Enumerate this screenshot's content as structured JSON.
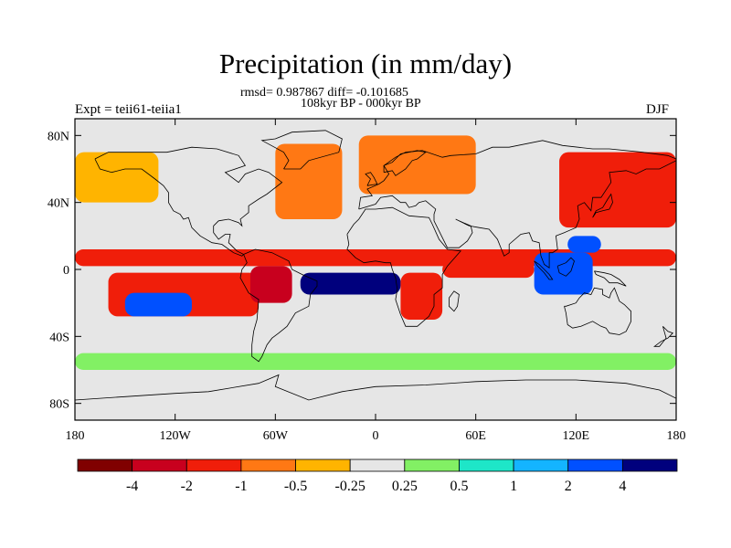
{
  "title": "Precipitation (in mm/day)",
  "stats_line": "rmsd= 0.987867 diff= -0.101685",
  "period_line": "108kyr BP - 000kyr BP",
  "left_label": "Expt = teii61-teiia1",
  "right_label": "DJF",
  "chart_data": {
    "type": "heatmap",
    "title": "Precipitation (in mm/day)",
    "subtitle": "108kyr BP - 000kyr BP",
    "xlabel": "",
    "ylabel": "",
    "projection": "cylindrical equidistant",
    "xlim": [
      -180,
      180
    ],
    "ylim": [
      -90,
      90
    ],
    "x_ticks": [
      {
        "value": -180,
        "label": "180"
      },
      {
        "value": -120,
        "label": "120W"
      },
      {
        "value": -60,
        "label": "60W"
      },
      {
        "value": 0,
        "label": "0"
      },
      {
        "value": 60,
        "label": "60E"
      },
      {
        "value": 120,
        "label": "120E"
      },
      {
        "value": 180,
        "label": "180"
      }
    ],
    "y_ticks": [
      {
        "value": 80,
        "label": "80N"
      },
      {
        "value": 40,
        "label": "40N"
      },
      {
        "value": 0,
        "label": "0"
      },
      {
        "value": -40,
        "label": "40S"
      },
      {
        "value": -80,
        "label": "80S"
      }
    ],
    "colorbar": {
      "levels": [
        "-4",
        "-2",
        "-1",
        "-0.5",
        "-0.25",
        "0.25",
        "0.5",
        "1",
        "2",
        "4"
      ],
      "colors": [
        "#800000",
        "#c8001e",
        "#f01e0a",
        "#ff7814",
        "#ffb400",
        "#e6e6e6",
        "#82f064",
        "#1ee6c8",
        "#14b4ff",
        "#0050ff",
        "#00007d"
      ]
    },
    "regions": [
      {
        "lon": [
          -180,
          180
        ],
        "lat": [
          2,
          12
        ],
        "value": -1.5
      },
      {
        "lon": [
          -160,
          -70
        ],
        "lat": [
          -28,
          -2
        ],
        "value": -1.5
      },
      {
        "lon": [
          -150,
          -110
        ],
        "lat": [
          -28,
          -14
        ],
        "value": 2.5
      },
      {
        "lon": [
          -75,
          -50
        ],
        "lat": [
          -20,
          2
        ],
        "value": -3
      },
      {
        "lon": [
          -45,
          15
        ],
        "lat": [
          -15,
          -2
        ],
        "value": 4.5
      },
      {
        "lon": [
          15,
          40
        ],
        "lat": [
          -30,
          -2
        ],
        "value": -1.5
      },
      {
        "lon": [
          40,
          95
        ],
        "lat": [
          -5,
          5
        ],
        "value": -1.5
      },
      {
        "lon": [
          95,
          130
        ],
        "lat": [
          -15,
          10
        ],
        "value": 2.5
      },
      {
        "lon": [
          115,
          135
        ],
        "lat": [
          10,
          20
        ],
        "value": 2.5
      },
      {
        "lon": [
          -60,
          -20
        ],
        "lat": [
          30,
          75
        ],
        "value": -0.8
      },
      {
        "lon": [
          -10,
          60
        ],
        "lat": [
          45,
          80
        ],
        "value": -0.8
      },
      {
        "lon": [
          110,
          180
        ],
        "lat": [
          25,
          70
        ],
        "value": -1.5
      },
      {
        "lon": [
          -180,
          -130
        ],
        "lat": [
          40,
          70
        ],
        "value": -0.5
      },
      {
        "lon": [
          -180,
          180
        ],
        "lat": [
          -60,
          -50
        ],
        "value": 0.3
      }
    ]
  }
}
